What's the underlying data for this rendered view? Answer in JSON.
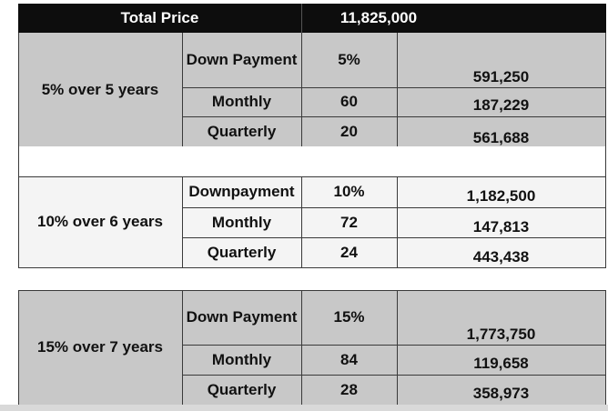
{
  "header": {
    "label": "Total Price",
    "value": "11,825,000"
  },
  "plans": [
    {
      "name": "5% over 5 years",
      "rows": [
        {
          "label": "Down Payment",
          "count": "5%",
          "amount": "591,250"
        },
        {
          "label": "Monthly",
          "count": "60",
          "amount": "187,229"
        },
        {
          "label": "Quarterly",
          "count": "20",
          "amount": "561,688"
        }
      ]
    },
    {
      "name": "10% over 6 years",
      "rows": [
        {
          "label": "Downpayment",
          "count": "10%",
          "amount": "1,182,500"
        },
        {
          "label": "Monthly",
          "count": "72",
          "amount": "147,813"
        },
        {
          "label": "Quarterly",
          "count": "24",
          "amount": "443,438"
        }
      ]
    },
    {
      "name": "15% over 7 years",
      "rows": [
        {
          "label": "Down Payment",
          "count": "15%",
          "amount": "1,773,750"
        },
        {
          "label": "Monthly",
          "count": "84",
          "amount": "119,658"
        },
        {
          "label": "Quarterly",
          "count": "28",
          "amount": "358,973"
        }
      ]
    }
  ]
}
